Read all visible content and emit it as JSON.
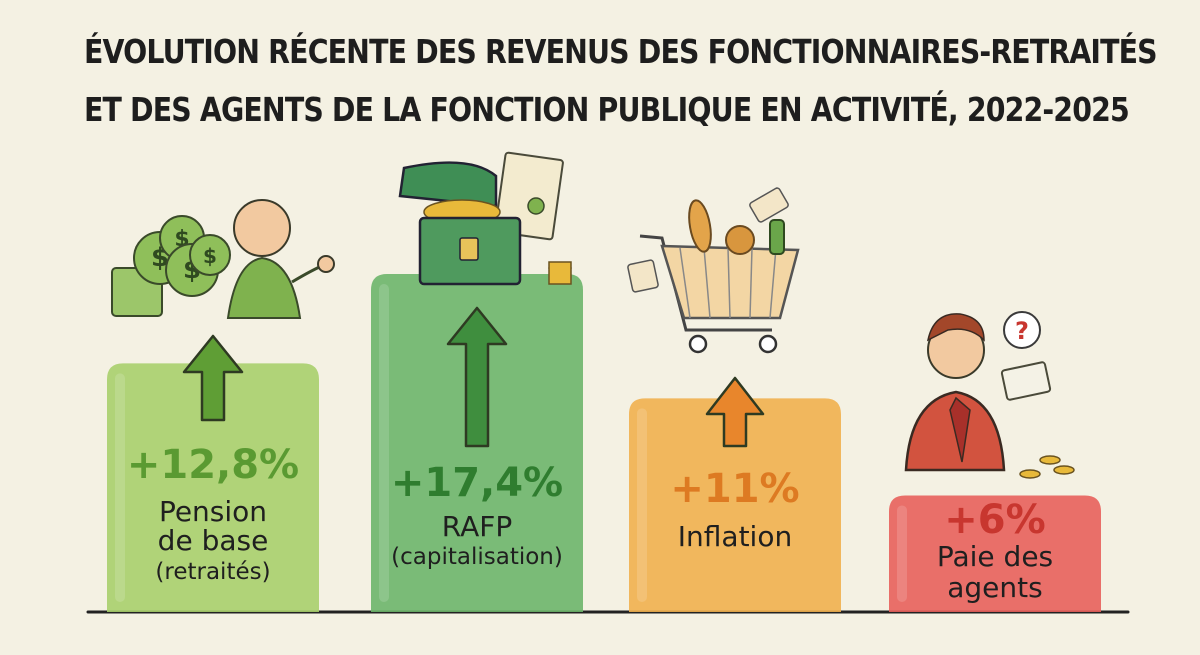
{
  "title_line1": "ÉVOLUTION RÉCENTE DES REVENUS DES FONCTIONNAIRES-RETRAITÉS",
  "title_line2": "ET DES AGENTS DE LA FONCTION PUBLIQUE EN ACTIVITÉ, 2022-2025",
  "chart_data": {
    "type": "bar",
    "title": "ÉVOLUTION RÉCENTE DES REVENUS DES FONCTIONNAIRES-RETRAITÉS ET DES AGENTS DE LA FONCTION PUBLIQUE EN ACTIVITÉ, 2022-2025",
    "categories": [
      "Pension de base (retraités)",
      "RAFP (capitalisation)",
      "Inflation",
      "Paie des agents"
    ],
    "values": [
      12.8,
      17.4,
      11,
      6
    ],
    "value_labels": [
      "+12,8%",
      "+17,4%",
      "+11%",
      "+6%"
    ],
    "category_lines": [
      [
        "Pension",
        "de base",
        "(retraités)"
      ],
      [
        "RAFP",
        "(capitalisation)"
      ],
      [
        "Inflation"
      ],
      [
        "Paie des",
        "agents"
      ]
    ],
    "colors": [
      "#a9cf6c",
      "#6db56a",
      "#f1b04e",
      "#e8605b"
    ],
    "arrow_colors": [
      "#5f9e35",
      "#3f8e3e",
      "#e8862c",
      "#d23d36"
    ],
    "value_colors": [
      "#5a9a32",
      "#2f7d2f",
      "#dd7a22",
      "#c8362f"
    ],
    "icons": [
      "money-bags-and-retiree-icon",
      "treasure-chest-icon",
      "shopping-cart-icon",
      "worried-agent-icon"
    ],
    "ylim": [
      0,
      20
    ],
    "grid": false,
    "legend": "none"
  }
}
